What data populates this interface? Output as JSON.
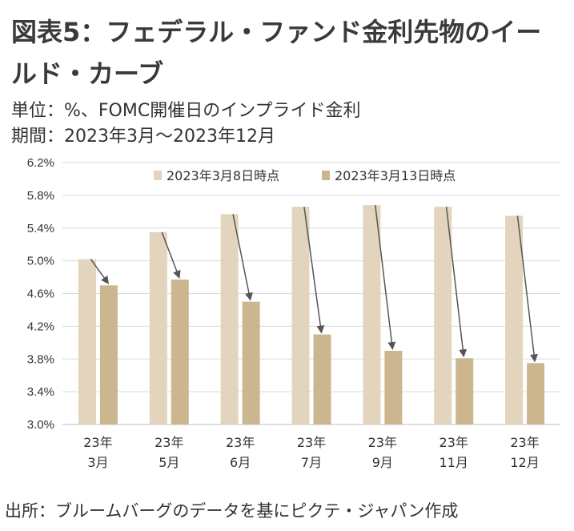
{
  "title": "図表5：フェデラル・ファンド金利先物のイールド・カーブ",
  "unit": "単位：%、FOMC開催日のインプライド金利",
  "period": "期間：2023年3月～2023年12月",
  "source": "出所：ブルームバーグのデータを基にピクテ・ジャパン作成",
  "colors": {
    "series1": "#e3d5bd",
    "series2": "#cbb690",
    "arrow": "#555555",
    "grid": "#d9d9d9",
    "axis": "#bfbfbf"
  },
  "chart_data": {
    "type": "bar",
    "categories": [
      [
        "23年",
        "3月"
      ],
      [
        "23年",
        "5月"
      ],
      [
        "23年",
        "6月"
      ],
      [
        "23年",
        "7月"
      ],
      [
        "23年",
        "9月"
      ],
      [
        "23年",
        "11月"
      ],
      [
        "23年",
        "12月"
      ]
    ],
    "series": [
      {
        "name": "2023年3月8日時点",
        "values": [
          5.02,
          5.35,
          5.57,
          5.66,
          5.68,
          5.66,
          5.55
        ]
      },
      {
        "name": "2023年3月13日時点",
        "values": [
          4.7,
          4.77,
          4.5,
          4.1,
          3.9,
          3.81,
          3.75
        ]
      }
    ],
    "ylim": [
      3.0,
      6.2
    ],
    "yticks": [
      "3.0%",
      "3.4%",
      "3.8%",
      "4.2%",
      "4.6%",
      "5.0%",
      "5.4%",
      "5.8%",
      "6.2%"
    ],
    "grid": "horizontal",
    "legend_position": "top-right",
    "annotations": "arrows from series 1 bar top to series 2 bar top"
  }
}
